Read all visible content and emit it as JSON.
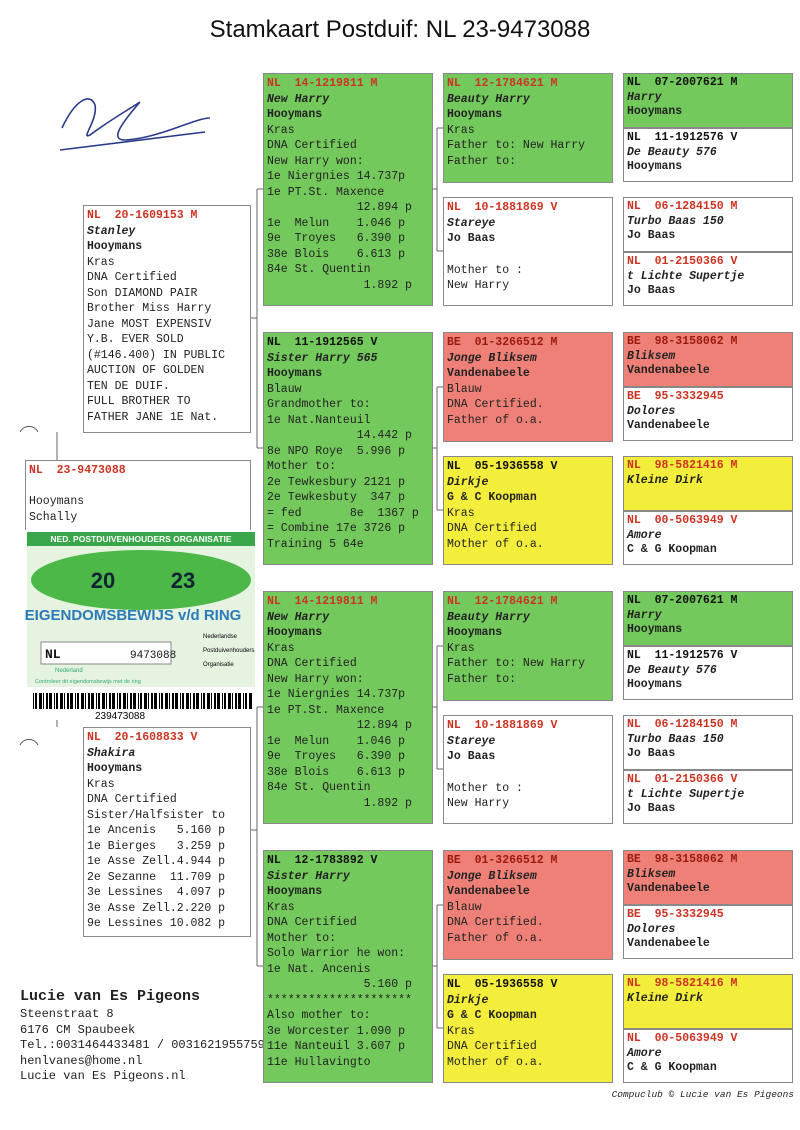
{
  "title": "Stamkaart Postduif: NL  23-9473088",
  "subject": {
    "ring": "NL  23-9473088",
    "lines": [
      "Hooymans",
      "Schally"
    ]
  },
  "ring_card": {
    "org": "NED. POSTDUIVENHOUDERS ORGANISATIE",
    "year_a": "20",
    "year_b": "23",
    "heading": "EIGENDOMSBEWIJS v/d RING",
    "country": "NL",
    "number": "9473088",
    "org_n": "Nederlandse",
    "org_p": "Postduivenhouders",
    "org_o": "Organisatie",
    "nation": "Nederland",
    "check": "Controleer dit eigendomsbewijs met de ring",
    "barcode": "239473088"
  },
  "pedigree": {
    "parents": [
      {
        "ring": "NL  20-1609153 M",
        "ring_style": "red",
        "name": "Stanley",
        "owner": "Hooymans",
        "color": "white",
        "lines": [
          "Kras",
          "DNA Certified",
          "Son DIAMOND PAIR",
          "Brother Miss Harry",
          "Jane MOST EXPENSIV",
          "Y.B. EVER SOLD",
          "(#146.400) IN PUBLIC",
          "AUCTION OF GOLDEN",
          "TEN DE DUIF.",
          "FULL BROTHER TO",
          "FATHER JANE 1E Nat."
        ]
      },
      {
        "ring": "NL  20-1608833 V",
        "ring_style": "red",
        "name": "Shakira",
        "owner": "Hooymans",
        "color": "white",
        "lines": [
          "Kras",
          "DNA Certified",
          "Sister/Halfsister to",
          "1e Ancenis   5.160 p",
          "1e Bierges   3.259 p",
          "1e Asse Zell.4.944 p",
          "2e Sezanne  11.709 p",
          "3e Lessines  4.097 p",
          "3e Asse Zell.2.220 p",
          "9e Lessines 10.082 p"
        ]
      }
    ],
    "grandparents": [
      {
        "ring": "NL  14-1219811 M",
        "ring_style": "red",
        "name": "New Harry",
        "owner": "Hooymans",
        "color": "green",
        "lines": [
          "Kras",
          "DNA Certified",
          "New Harry won:",
          "1e Niergnies 14.737p",
          "1e PT.St. Maxence",
          "             12.894 p",
          "1e  Melun    1.046 p",
          "9e  Troyes   6.390 p",
          "38e Blois    6.613 p",
          "84e St. Quentin",
          "              1.892 p"
        ]
      },
      {
        "ring": "NL  11-1912565 V",
        "ring_style": "black",
        "name": "Sister Harry 565",
        "owner": "Hooymans",
        "color": "green",
        "lines": [
          "Blauw",
          "Grandmother to:",
          "1e Nat.Nanteuil",
          "             14.442 p",
          "8e NPO Roye  5.996 p",
          "Mother to:",
          "2e Tewkesbury 2121 p",
          "2e Tewkesbuty  347 p",
          "= fed       8e  1367 p",
          "= Combine 17e 3726 p",
          "Training 5 64e"
        ]
      },
      {
        "ring": "NL  14-1219811 M",
        "ring_style": "red",
        "name": "New Harry",
        "owner": "Hooymans",
        "color": "green",
        "lines": [
          "Kras",
          "DNA Certified",
          "New Harry won:",
          "1e Niergnies 14.737p",
          "1e PT.St. Maxence",
          "             12.894 p",
          "1e  Melun    1.046 p",
          "9e  Troyes   6.390 p",
          "38e Blois    6.613 p",
          "84e St. Quentin",
          "              1.892 p"
        ]
      },
      {
        "ring": "NL  12-1783892 V",
        "ring_style": "black",
        "name": "Sister Harry",
        "owner": "Hooymans",
        "color": "green",
        "lines": [
          "Kras",
          "DNA Certified",
          "Mother to:",
          "Solo Warrior he won:",
          "1e Nat. Ancenis",
          "              5.160 p",
          "*********************",
          "Also mother to:",
          "3e Worcester 1.090 p",
          "11e Nanteuil 3.607 p",
          "11e Hullavingto"
        ]
      }
    ],
    "great_grandparents": [
      {
        "ring": "NL  12-1784621 M",
        "ring_style": "red",
        "name": "Beauty Harry",
        "owner": "Hooymans",
        "color": "green",
        "lines": [
          "Kras",
          "Father to: New Harry",
          "Father to:"
        ]
      },
      {
        "ring": "NL  10-1881869 V",
        "ring_style": "red",
        "name": "Stareye",
        "owner": "Jo Baas",
        "color": "white",
        "lines": [
          "Mother to :",
          "New Harry"
        ]
      },
      {
        "ring": "BE  01-3266512 M",
        "ring_style": "red",
        "name": "Jonge Bliksem",
        "owner": "Vandenabeele",
        "color": "red",
        "lines": [
          "Blauw",
          "DNA Certified.",
          "Father of o.a."
        ]
      },
      {
        "ring": "NL  05-1936558 V",
        "ring_style": "black",
        "name": "Dirkje",
        "owner": "G & C Koopman",
        "color": "yellow",
        "lines": [
          "Kras",
          "DNA Certified",
          "Mother of o.a."
        ]
      },
      {
        "ring": "NL  12-1784621 M",
        "ring_style": "red",
        "name": "Beauty Harry",
        "owner": "Hooymans",
        "color": "green",
        "lines": [
          "Kras",
          "Father to: New Harry",
          "Father to:"
        ]
      },
      {
        "ring": "NL  10-1881869 V",
        "ring_style": "red",
        "name": "Stareye",
        "owner": "Jo Baas",
        "color": "white",
        "lines": [
          "Mother to :",
          "New Harry"
        ]
      },
      {
        "ring": "BE  01-3266512 M",
        "ring_style": "red",
        "name": "Jonge Bliksem",
        "owner": "Vandenabeele",
        "color": "red",
        "lines": [
          "Blauw",
          "DNA Certified.",
          "Father of o.a."
        ]
      },
      {
        "ring": "NL  05-1936558 V",
        "ring_style": "black",
        "name": "Dirkje",
        "owner": "G & C Koopman",
        "color": "yellow",
        "lines": [
          "Kras",
          "DNA Certified",
          "Mother of o.a."
        ]
      }
    ],
    "great_great_grandparents": [
      {
        "ring": "NL  07-2007621 M",
        "ring_style": "black",
        "name": "Harry",
        "owner": "Hooymans",
        "color": "green"
      },
      {
        "ring": "NL  11-1912576 V",
        "ring_style": "black",
        "name": "De Beauty 576",
        "owner": "Hooymans",
        "color": "white"
      },
      {
        "ring": "NL  06-1284150 M",
        "ring_style": "red",
        "name": "Turbo Baas 150",
        "owner": "Jo Baas",
        "color": "white"
      },
      {
        "ring": "NL  01-2150366 V",
        "ring_style": "red",
        "name": "t Lichte Supertje",
        "owner": "Jo Baas",
        "color": "white"
      },
      {
        "ring": "BE  98-3158062 M",
        "ring_style": "red",
        "name": "Bliksem",
        "owner": "Vandenabeele",
        "color": "red"
      },
      {
        "ring": "BE  95-3332945",
        "ring_style": "red",
        "name": "Dolores",
        "owner": "Vandenabeele",
        "color": "white"
      },
      {
        "ring": "NL  98-5821416 M",
        "ring_style": "red",
        "name": "Kleine Dirk",
        "color": "yellow"
      },
      {
        "ring": "NL  00-5063949 V",
        "ring_style": "red",
        "name": "Amore",
        "owner": "C & G Koopman",
        "color": "white"
      },
      {
        "ring": "NL  07-2007621 M",
        "ring_style": "black",
        "name": "Harry",
        "owner": "Hooymans",
        "color": "green"
      },
      {
        "ring": "NL  11-1912576 V",
        "ring_style": "black",
        "name": "De Beauty 576",
        "owner": "Hooymans",
        "color": "white"
      },
      {
        "ring": "NL  06-1284150 M",
        "ring_style": "red",
        "name": "Turbo Baas 150",
        "owner": "Jo Baas",
        "color": "white"
      },
      {
        "ring": "NL  01-2150366 V",
        "ring_style": "red",
        "name": "t Lichte Supertje",
        "owner": "Jo Baas",
        "color": "white"
      },
      {
        "ring": "BE  98-3158062 M",
        "ring_style": "red",
        "name": "Bliksem",
        "owner": "Vandenabeele",
        "color": "red"
      },
      {
        "ring": "BE  95-3332945",
        "ring_style": "red",
        "name": "Dolores",
        "owner": "Vandenabeele",
        "color": "white"
      },
      {
        "ring": "NL  98-5821416 M",
        "ring_style": "red",
        "name": "Kleine Dirk",
        "color": "yellow"
      },
      {
        "ring": "NL  00-5063949 V",
        "ring_style": "red",
        "name": "Amore",
        "owner": "C & G Koopman",
        "color": "white"
      }
    ]
  },
  "footer": {
    "breeder": "Lucie van Es Pigeons",
    "lines": [
      "Steenstraat 8",
      "6176 CM  Spaubeek",
      "Tel.:0031464433481 / 0031621955759",
      "henlvanes@home.nl",
      "Lucie van Es Pigeons.nl"
    ],
    "credit": "Compuclub © Lucie van Es Pigeons"
  }
}
